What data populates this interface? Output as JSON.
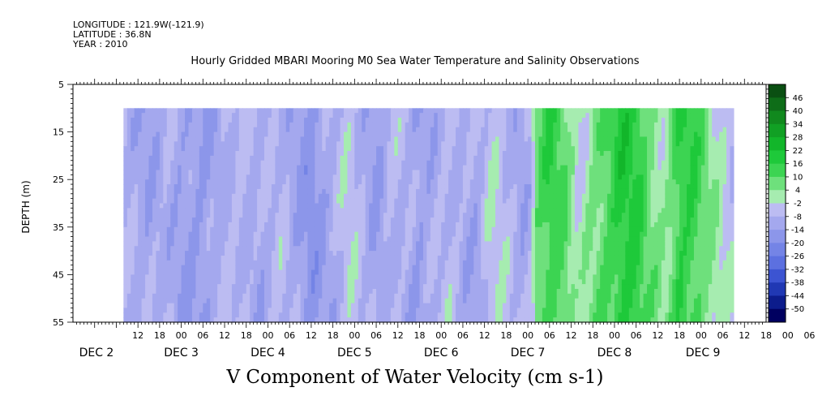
{
  "header": {
    "longitude": "LONGITUDE : 121.9W(-121.9)",
    "latitude": "LATITUDE : 36.8N",
    "year": "YEAR : 2010"
  },
  "chart_data": {
    "type": "heatmap",
    "title": "Hourly Gridded MBARI Mooring M0 Sea Water Temperature and Salinity Observations",
    "xlabel": "V Component of Water Velocity (cm s-1)",
    "ylabel": "DEPTH (m)",
    "y_ticks": [
      5,
      15,
      25,
      35,
      45,
      55
    ],
    "y_range": [
      5,
      55
    ],
    "y_inverted": true,
    "data_depth_range": [
      10,
      55
    ],
    "x_hour_labels": [
      "12",
      "18",
      "00",
      "06",
      "12",
      "18",
      "00",
      "06",
      "12",
      "18",
      "00",
      "06",
      "12",
      "18",
      "00",
      "06",
      "12",
      "18",
      "00",
      "06",
      "12",
      "18",
      "00",
      "06",
      "12",
      "18",
      "00",
      "06",
      "12",
      "18",
      "00",
      "06"
    ],
    "x_day_labels": [
      "DEC  2",
      "DEC  3",
      "DEC  4",
      "DEC  5",
      "DEC  6",
      "DEC  7",
      "DEC  8",
      "DEC  9"
    ],
    "data_hour_range": [
      14,
      183
    ],
    "colorbar": {
      "levels": [
        46,
        40,
        34,
        28,
        22,
        16,
        10,
        4,
        -2,
        -8,
        -14,
        -20,
        -26,
        -32,
        -38,
        -44,
        -50
      ],
      "colors": [
        "#0a4f12",
        "#0e6d18",
        "#11891e",
        "#11a024",
        "#12b62a",
        "#1ec93a",
        "#3cd452",
        "#6ee07c",
        "#a6ecb0",
        "#bcbcf2",
        "#a4a8ee",
        "#8c96ea",
        "#7484e6",
        "#5c70e0",
        "#3c54d2",
        "#2038b4",
        "#0c1c8c",
        "#000060"
      ]
    },
    "time_profile": [
      [
        14,
        -9
      ],
      [
        20,
        -12
      ],
      [
        26,
        -8
      ],
      [
        30,
        -13
      ],
      [
        36,
        -15
      ],
      [
        42,
        -8
      ],
      [
        46,
        -6
      ],
      [
        52,
        -11
      ],
      [
        58,
        -7
      ],
      [
        62,
        -12
      ],
      [
        66,
        -16
      ],
      [
        72,
        -10
      ],
      [
        76,
        -4
      ],
      [
        80,
        -8
      ],
      [
        84,
        -13
      ],
      [
        88,
        -6
      ],
      [
        92,
        -9
      ],
      [
        96,
        -14
      ],
      [
        100,
        -10
      ],
      [
        104,
        -5
      ],
      [
        108,
        -9
      ],
      [
        112,
        -12
      ],
      [
        116,
        -3
      ],
      [
        120,
        -6
      ],
      [
        124,
        -11
      ],
      [
        127,
        -8
      ],
      [
        128,
        8
      ],
      [
        132,
        14
      ],
      [
        136,
        9
      ],
      [
        140,
        -3
      ],
      [
        144,
        6
      ],
      [
        148,
        12
      ],
      [
        152,
        18
      ],
      [
        156,
        16
      ],
      [
        160,
        6
      ],
      [
        164,
        2
      ],
      [
        168,
        16
      ],
      [
        172,
        14
      ],
      [
        176,
        4
      ],
      [
        180,
        -2
      ],
      [
        183,
        -5
      ]
    ]
  }
}
